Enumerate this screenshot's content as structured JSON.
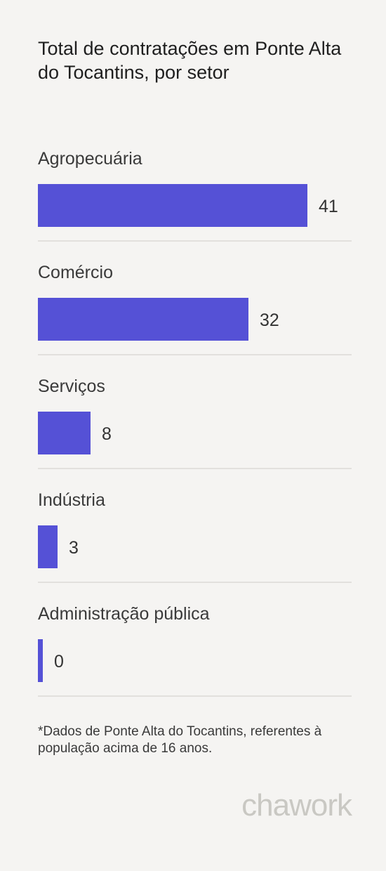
{
  "chart_data": {
    "type": "bar",
    "orientation": "horizontal",
    "title": "Total de contratações em Ponte Alta do Tocantins, por setor",
    "categories": [
      "Agropecuária",
      "Comércio",
      "Serviços",
      "Indústria",
      "Administração pública"
    ],
    "values": [
      41,
      32,
      8,
      3,
      0
    ],
    "colors": {
      "bar": "#5551d6",
      "divider": "#e2e0dd",
      "background": "#f5f4f2"
    }
  },
  "footnote": "*Dados de Ponte Alta do Tocantins, referentes à população acima de 16 anos.",
  "brand": {
    "logo_text": "chawork",
    "color": "#c9c8c3"
  }
}
